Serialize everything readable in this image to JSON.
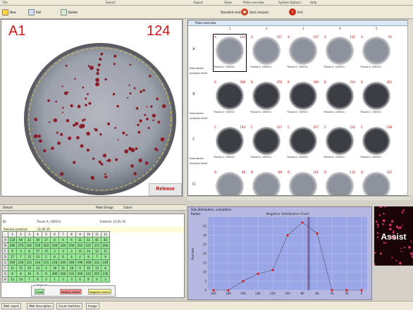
{
  "menubar": {
    "items": [
      "File",
      "",
      "Search",
      "Export",
      "Show",
      "Plate overview",
      "System Options",
      "Help"
    ]
  },
  "toolbar": {
    "buttons": [
      "New",
      "Roll",
      "Delete"
    ],
    "center_label": "Standard read",
    "action_label": "Start analysis",
    "exit_label": "Exit"
  },
  "well": {
    "id": "A1",
    "count": "124",
    "release_label": "Release"
  },
  "grid": {
    "tab_label": "Plate overview",
    "columns": [
      "1",
      "2",
      "3",
      "4",
      "5"
    ],
    "rows": [
      "A",
      "B",
      "C",
      "D"
    ],
    "row_label_top": "Description",
    "row_label_bottom": "Analysis result",
    "counts": [
      [
        "124",
        "157",
        "107",
        "132",
        "93"
      ],
      [
        "298",
        "278",
        "299",
        "254",
        "302"
      ],
      [
        "194",
        "217",
        "207",
        "214",
        "238"
      ],
      [
        "98",
        "88",
        "101",
        "110",
        "105"
      ]
    ],
    "tile_label": "Tissue A, 100521"
  },
  "bottom_bar": {
    "left_label": "Details",
    "mid_label": "Plate Design",
    "right_label": "Colors"
  },
  "details": {
    "row1_label": "ID:",
    "row1_value": "Tissue A, 100521",
    "row2_label": "Release protocol:",
    "row2_value": "11.05.10",
    "col_right_label": "Entered: 12.05.10"
  },
  "count_table": {
    "header": [
      "",
      "1",
      "2",
      "3",
      "4",
      "5",
      "6",
      "7",
      "8",
      "9",
      "10",
      "11",
      "12"
    ],
    "rows": [
      [
        "A",
        "124",
        "60",
        "22",
        "30",
        "27",
        "6",
        "6",
        "6",
        "21",
        "21",
        "41",
        "43"
      ],
      [
        "B",
        "290",
        "270",
        "281",
        "250",
        "303",
        "240",
        "245",
        "250",
        "202",
        "225",
        "251",
        "294"
      ],
      [
        "C",
        "9",
        "3",
        "8",
        "17",
        "15",
        "2",
        "3",
        "3",
        "12",
        "14",
        "12",
        "11"
      ],
      [
        "D",
        "17",
        "7",
        "12",
        "13",
        "5",
        "6",
        "6",
        "4",
        "4",
        "6",
        "7",
        "9"
      ],
      [
        "E",
        "200",
        "220",
        "221",
        "224",
        "215",
        "218",
        "240",
        "246",
        "196",
        "200",
        "221",
        "229"
      ],
      [
        "F",
        "11",
        "15",
        "19",
        "13",
        "4",
        "18",
        "21",
        "18",
        "9",
        "10",
        "13",
        "8"
      ],
      [
        "G",
        "8",
        "8",
        "10",
        "6",
        "6",
        "300",
        "200",
        "231",
        "200",
        "212",
        "201",
        "230"
      ],
      [
        "H",
        "13",
        "14",
        "7",
        "6",
        "2",
        "1",
        "3",
        "3",
        "6",
        "6",
        "4",
        "3"
      ]
    ]
  },
  "legend": {
    "title": "Categories",
    "items": [
      "Count",
      "Positive control",
      "Negative control"
    ]
  },
  "status_tabs": [
    "Well report",
    "Well description",
    "Count statistics",
    "Image"
  ],
  "histogram": {
    "title_bar": "Size distribution, cumulative",
    "side_label": "Radius"
  },
  "chart_data": {
    "type": "line",
    "title": "Negative distribution Chart",
    "xlabel": "",
    "ylabel": "Number",
    "x": [
      200,
      180,
      160,
      140,
      120,
      100,
      80,
      60,
      40,
      20,
      0
    ],
    "values": [
      0,
      0,
      5,
      9,
      11,
      30,
      37,
      31,
      0,
      0,
      0
    ],
    "ylim": [
      0,
      40
    ],
    "yticks": [
      0,
      5,
      10,
      15,
      20,
      25,
      30,
      35
    ],
    "marker_x": 72,
    "colors": {
      "line": "#1a1a1a",
      "point": "#e01818",
      "marker": "#d01010",
      "plot_bg": "#9aa6e6"
    }
  },
  "assist": {
    "label": "Assist"
  }
}
